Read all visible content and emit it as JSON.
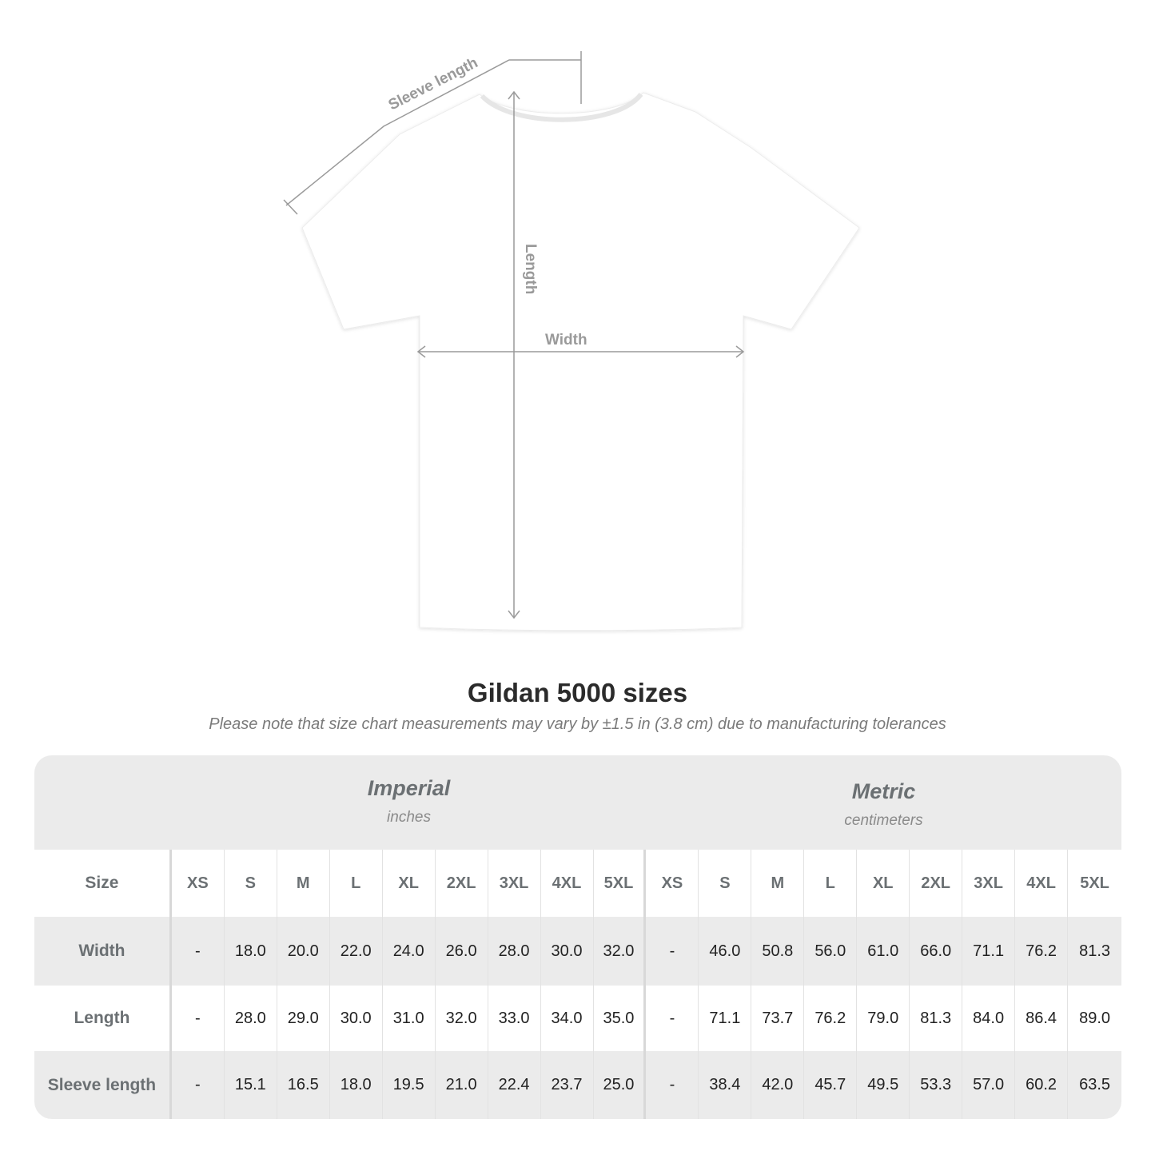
{
  "diagram": {
    "labels": {
      "sleeve": "Sleeve length",
      "length": "Length",
      "width": "Width"
    },
    "shirt_color": "#ffffff",
    "line_color": "#9a9a9a"
  },
  "title": "Gildan 5000 sizes",
  "note": "Please note that size chart measurements may vary by ±1.5 in (3.8 cm) due to manufacturing tolerances",
  "table": {
    "imperial": {
      "name": "Imperial",
      "unit": "inches"
    },
    "metric": {
      "name": "Metric",
      "unit": "centimeters"
    },
    "size_label": "Size",
    "sizes": [
      "XS",
      "S",
      "M",
      "L",
      "XL",
      "2XL",
      "3XL",
      "4XL",
      "5XL"
    ],
    "rows": [
      {
        "label": "Width",
        "imperial": [
          "-",
          "18.0",
          "20.0",
          "22.0",
          "24.0",
          "26.0",
          "28.0",
          "30.0",
          "32.0"
        ],
        "metric": [
          "-",
          "46.0",
          "50.8",
          "56.0",
          "61.0",
          "66.0",
          "71.1",
          "76.2",
          "81.3"
        ]
      },
      {
        "label": "Length",
        "imperial": [
          "-",
          "28.0",
          "29.0",
          "30.0",
          "31.0",
          "32.0",
          "33.0",
          "34.0",
          "35.0"
        ],
        "metric": [
          "-",
          "71.1",
          "73.7",
          "76.2",
          "79.0",
          "81.3",
          "84.0",
          "86.4",
          "89.0"
        ]
      },
      {
        "label": "Sleeve length",
        "imperial": [
          "-",
          "15.1",
          "16.5",
          "18.0",
          "19.5",
          "21.0",
          "22.4",
          "23.7",
          "25.0"
        ],
        "metric": [
          "-",
          "38.4",
          "42.0",
          "45.7",
          "49.5",
          "53.3",
          "57.0",
          "60.2",
          "63.5"
        ]
      }
    ]
  }
}
